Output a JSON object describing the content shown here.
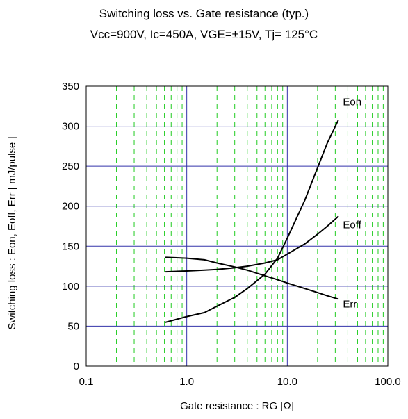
{
  "chart_data": {
    "type": "line",
    "title": "Switching loss  vs.  Gate resistance (typ.)",
    "subtitle": "Vcc=900V, Ic=450A, VGE=±15V, Tj= 125°C",
    "xlabel": "Gate resistance : RG [Ω]",
    "ylabel": "Switching loss  :  Eon, Eoff, Err  [ mJ/pulse ]",
    "x_scale": "log",
    "xlim": [
      0.1,
      100
    ],
    "ylim": [
      0,
      350
    ],
    "x_ticks": [
      "0.1",
      "1.0",
      "10.0",
      "100.0"
    ],
    "y_ticks": [
      "0",
      "50",
      "100",
      "150",
      "200",
      "250",
      "300",
      "350"
    ],
    "grid": true,
    "colors": {
      "major_grid": "#3333aa",
      "minor_grid": "#22cc22",
      "curve": "#000000"
    },
    "series": [
      {
        "name": "Eon",
        "x": [
          0.62,
          1.0,
          1.5,
          2.0,
          3.0,
          4.0,
          6.0,
          8.0,
          10.0,
          15.0,
          20.0,
          25.0,
          32.0
        ],
        "y": [
          55,
          62,
          67,
          75,
          86,
          97,
          115,
          135,
          160,
          208,
          248,
          279,
          307
        ]
      },
      {
        "name": "Eoff",
        "x": [
          0.62,
          1.0,
          1.5,
          2.0,
          3.0,
          4.0,
          6.0,
          8.0,
          10.0,
          15.0,
          20.0,
          25.0,
          32.0
        ],
        "y": [
          118,
          119,
          120,
          121,
          123,
          125,
          129,
          133,
          140,
          153,
          165,
          175,
          187
        ]
      },
      {
        "name": "Err",
        "x": [
          0.62,
          1.0,
          1.5,
          2.0,
          3.0,
          4.0,
          6.0,
          8.0,
          10.0,
          15.0,
          20.0,
          25.0,
          32.0
        ],
        "y": [
          136,
          135,
          133,
          129,
          124,
          120,
          113,
          108,
          104,
          97,
          92,
          88,
          84
        ]
      }
    ]
  }
}
